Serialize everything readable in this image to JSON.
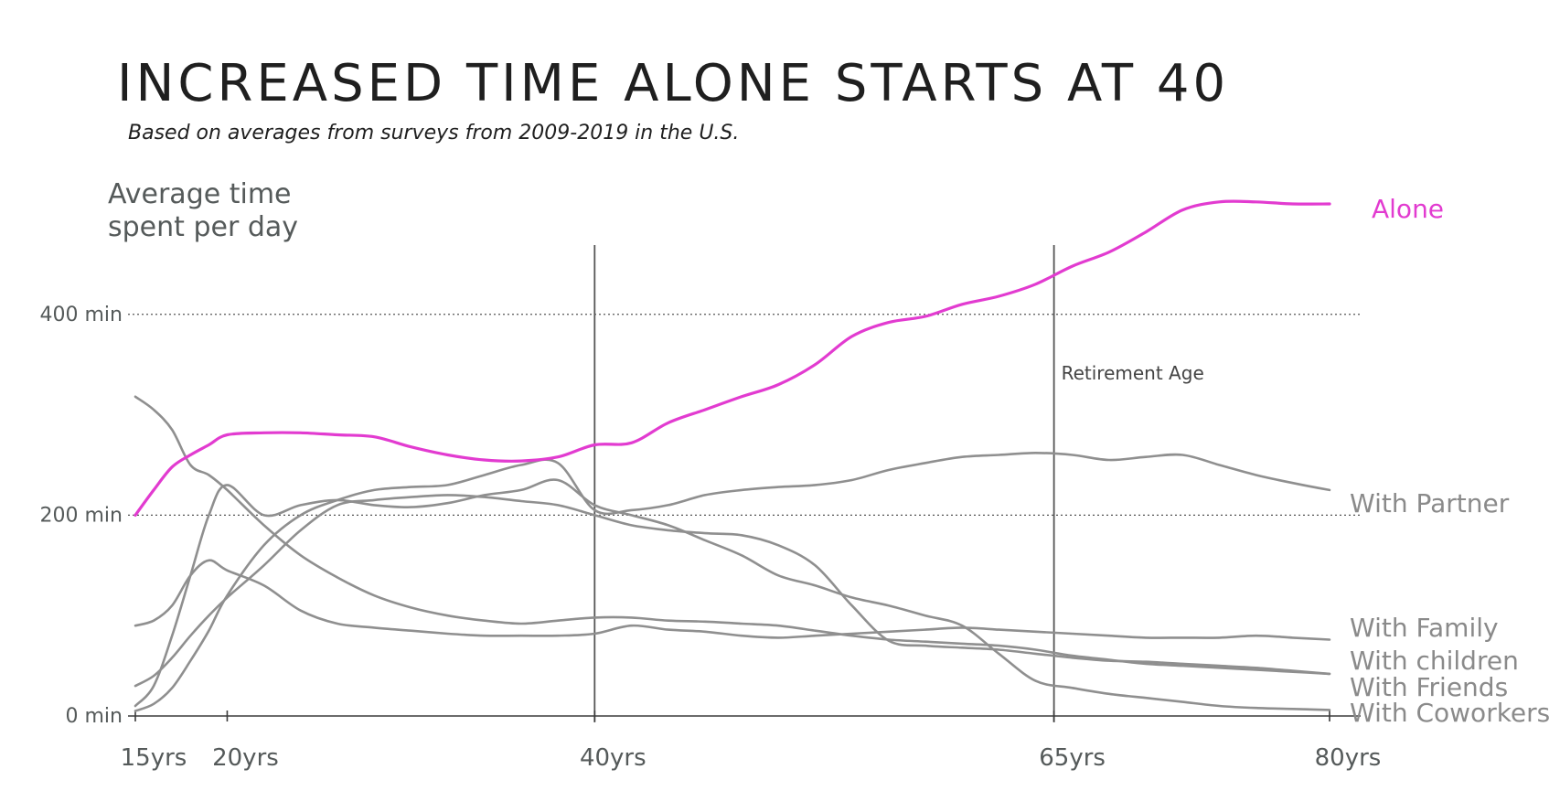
{
  "chart_data": {
    "type": "line",
    "title": "INCREASED TIME ALONE STARTS AT 40",
    "subtitle": "Based on averages from surveys from 2009-2019 in the U.S.",
    "ylabel": "Average time spent per day",
    "xlabel": "",
    "xlim": [
      15,
      80
    ],
    "ylim": [
      0,
      520
    ],
    "x_ticks": [
      {
        "value": 15,
        "label": "15yrs"
      },
      {
        "value": 20,
        "label": "20yrs"
      },
      {
        "value": 40,
        "label": "40yrs"
      },
      {
        "value": 65,
        "label": "65yrs"
      },
      {
        "value": 80,
        "label": "80yrs"
      }
    ],
    "y_ticks": [
      {
        "value": 0,
        "label": "0 min"
      },
      {
        "value": 200,
        "label": "200 min"
      },
      {
        "value": 400,
        "label": "400 min"
      }
    ],
    "gridlines_y": [
      200,
      400
    ],
    "vertical_lines": [
      {
        "value": 40,
        "label": ""
      },
      {
        "value": 65,
        "label": "Retirement Age"
      }
    ],
    "series": [
      {
        "name": "Alone",
        "color": "#e23bd0",
        "x": [
          15,
          16,
          17,
          18,
          19,
          20,
          22,
          24,
          26,
          28,
          30,
          32,
          34,
          36,
          38,
          40,
          42,
          44,
          46,
          48,
          50,
          52,
          54,
          56,
          58,
          60,
          62,
          64,
          66,
          68,
          70,
          72,
          74,
          76,
          78,
          80
        ],
        "y": [
          200,
          225,
          248,
          260,
          270,
          280,
          282,
          282,
          280,
          278,
          268,
          260,
          255,
          254,
          258,
          270,
          272,
          292,
          305,
          318,
          330,
          350,
          378,
          392,
          398,
          410,
          418,
          430,
          448,
          462,
          482,
          504,
          512,
          512,
          510,
          510
        ]
      },
      {
        "name": "With Partner",
        "color": "#8f8f8f",
        "x": [
          15,
          16,
          17,
          18,
          19,
          20,
          22,
          24,
          26,
          28,
          30,
          32,
          34,
          36,
          38,
          40,
          42,
          44,
          46,
          48,
          50,
          52,
          54,
          56,
          58,
          60,
          62,
          64,
          66,
          68,
          70,
          72,
          74,
          76,
          78,
          80
        ],
        "y": [
          5,
          12,
          28,
          55,
          85,
          120,
          170,
          200,
          215,
          225,
          228,
          230,
          240,
          250,
          252,
          205,
          205,
          210,
          220,
          225,
          228,
          230,
          235,
          245,
          252,
          258,
          260,
          262,
          260,
          255,
          258,
          260,
          250,
          240,
          232,
          225
        ]
      },
      {
        "name": "With Family",
        "color": "#8f8f8f",
        "x": [
          15,
          16,
          17,
          18,
          19,
          20,
          22,
          24,
          26,
          28,
          30,
          32,
          34,
          36,
          38,
          40,
          42,
          44,
          46,
          48,
          50,
          52,
          54,
          56,
          58,
          60,
          62,
          64,
          66,
          68,
          70,
          72,
          74,
          76,
          78,
          80
        ],
        "y": [
          90,
          95,
          110,
          140,
          155,
          145,
          130,
          105,
          92,
          88,
          85,
          82,
          80,
          80,
          80,
          82,
          90,
          86,
          84,
          80,
          78,
          80,
          82,
          84,
          86,
          88,
          86,
          84,
          82,
          80,
          78,
          78,
          78,
          80,
          78,
          76
        ]
      },
      {
        "name": "With children",
        "color": "#8f8f8f",
        "x": [
          15,
          16,
          17,
          18,
          19,
          20,
          22,
          24,
          26,
          28,
          30,
          32,
          34,
          36,
          38,
          40,
          42,
          44,
          46,
          48,
          50,
          52,
          54,
          56,
          58,
          60,
          62,
          64,
          66,
          68,
          70,
          72,
          74,
          76,
          78,
          80
        ],
        "y": [
          30,
          40,
          58,
          80,
          100,
          118,
          150,
          185,
          210,
          215,
          218,
          220,
          218,
          214,
          210,
          200,
          190,
          185,
          182,
          180,
          170,
          150,
          110,
          75,
          70,
          68,
          66,
          62,
          58,
          55,
          54,
          52,
          50,
          48,
          45,
          42
        ]
      },
      {
        "name": "With Friends",
        "color": "#8f8f8f",
        "x": [
          15,
          16,
          17,
          18,
          19,
          20,
          22,
          24,
          26,
          28,
          30,
          32,
          34,
          36,
          38,
          40,
          42,
          44,
          46,
          48,
          50,
          52,
          54,
          56,
          58,
          60,
          62,
          64,
          66,
          68,
          70,
          72,
          74,
          76,
          78,
          80
        ],
        "y": [
          318,
          305,
          285,
          250,
          240,
          225,
          190,
          160,
          138,
          120,
          108,
          100,
          95,
          92,
          95,
          98,
          98,
          95,
          94,
          92,
          90,
          85,
          80,
          76,
          74,
          72,
          70,
          66,
          60,
          56,
          52,
          50,
          48,
          46,
          44,
          42
        ]
      },
      {
        "name": "With Coworkers",
        "color": "#8f8f8f",
        "x": [
          15,
          16,
          17,
          18,
          19,
          20,
          22,
          24,
          26,
          28,
          30,
          32,
          34,
          36,
          38,
          40,
          42,
          44,
          46,
          48,
          50,
          52,
          54,
          56,
          58,
          60,
          62,
          64,
          66,
          68,
          70,
          72,
          74,
          76,
          78,
          80
        ],
        "y": [
          10,
          30,
          80,
          140,
          200,
          230,
          200,
          210,
          215,
          210,
          208,
          212,
          220,
          225,
          235,
          210,
          200,
          190,
          175,
          160,
          140,
          130,
          118,
          110,
          100,
          90,
          62,
          35,
          28,
          22,
          18,
          14,
          10,
          8,
          7,
          6
        ]
      }
    ]
  }
}
